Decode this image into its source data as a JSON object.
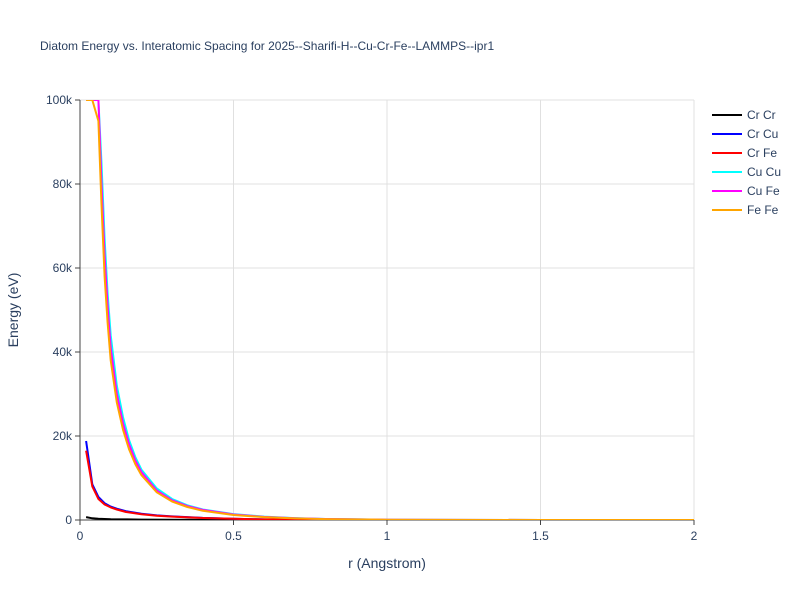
{
  "chart_data": {
    "type": "line",
    "title": "Diatom Energy vs. Interatomic Spacing for 2025--Sharifi-H--Cu-Cr-Fe--LAMMPS--ipr1",
    "xlabel": "r (Angstrom)",
    "ylabel": "Energy (eV)",
    "xlim": [
      0,
      2
    ],
    "ylim": [
      0,
      100000
    ],
    "x_ticks": [
      0,
      0.5,
      1,
      1.5,
      2
    ],
    "x_tick_labels": [
      "0",
      "0.5",
      "1",
      "1.5",
      "2"
    ],
    "y_ticks": [
      0,
      20000,
      40000,
      60000,
      80000,
      100000
    ],
    "y_tick_labels": [
      "0",
      "20k",
      "40k",
      "60k",
      "80k",
      "100k"
    ],
    "grid": true,
    "legend_position": "top-right",
    "series": [
      {
        "name": "Cr Cr",
        "color": "#000000",
        "x": [
          0.02,
          0.04,
          0.06,
          0.1,
          0.15,
          0.2,
          0.3,
          0.5,
          0.8,
          1.0,
          1.5,
          2.0
        ],
        "y": [
          700,
          400,
          300,
          200,
          150,
          100,
          60,
          20,
          5,
          0,
          0,
          0
        ]
      },
      {
        "name": "Cr Cu",
        "color": "#0000ff",
        "x": [
          0.02,
          0.04,
          0.06,
          0.08,
          0.1,
          0.12,
          0.15,
          0.2,
          0.25,
          0.3,
          0.4,
          0.5,
          0.6,
          0.7,
          0.8,
          1.0,
          1.5,
          2.0
        ],
        "y": [
          18800,
          8500,
          5500,
          4000,
          3200,
          2700,
          2100,
          1500,
          1100,
          850,
          500,
          300,
          150,
          60,
          20,
          0,
          0,
          0
        ]
      },
      {
        "name": "Cr Fe",
        "color": "#ff0000",
        "x": [
          0.02,
          0.04,
          0.06,
          0.08,
          0.1,
          0.12,
          0.15,
          0.2,
          0.25,
          0.3,
          0.4,
          0.5,
          0.6,
          0.7,
          0.8,
          1.0,
          1.5,
          2.0
        ],
        "y": [
          16500,
          8000,
          5000,
          3700,
          3000,
          2500,
          1900,
          1350,
          1000,
          800,
          480,
          280,
          140,
          55,
          20,
          0,
          0,
          0
        ]
      },
      {
        "name": "Cu Cu",
        "color": "#00ffff",
        "x": [
          0.02,
          0.05,
          0.06,
          0.07,
          0.08,
          0.09,
          0.1,
          0.12,
          0.14,
          0.16,
          0.18,
          0.2,
          0.25,
          0.3,
          0.35,
          0.4,
          0.5,
          0.6,
          0.7,
          0.8,
          1.0,
          1.5,
          2.0
        ],
        "y": [
          100000,
          100000,
          100000,
          85000,
          67000,
          54000,
          44000,
          32000,
          24500,
          19000,
          15000,
          12000,
          7500,
          5000,
          3500,
          2500,
          1400,
          800,
          450,
          250,
          80,
          0,
          0
        ]
      },
      {
        "name": "Cu Fe",
        "color": "#ff00ff",
        "x": [
          0.02,
          0.05,
          0.06,
          0.07,
          0.08,
          0.09,
          0.1,
          0.12,
          0.14,
          0.16,
          0.18,
          0.2,
          0.25,
          0.3,
          0.35,
          0.4,
          0.5,
          0.6,
          0.7,
          0.8,
          1.0,
          1.5,
          2.0
        ],
        "y": [
          100000,
          100000,
          100000,
          80000,
          63000,
          51000,
          41000,
          30000,
          23000,
          18000,
          14200,
          11400,
          7000,
          4700,
          3300,
          2400,
          1300,
          750,
          420,
          230,
          70,
          0,
          0
        ]
      },
      {
        "name": "Fe Fe",
        "color": "#ffa500",
        "x": [
          0.02,
          0.04,
          0.06,
          0.07,
          0.08,
          0.09,
          0.1,
          0.12,
          0.14,
          0.16,
          0.18,
          0.2,
          0.25,
          0.3,
          0.35,
          0.4,
          0.5,
          0.6,
          0.7,
          0.8,
          1.0,
          1.5,
          2.0
        ],
        "y": [
          100000,
          100000,
          95000,
          75000,
          58000,
          47000,
          38000,
          28000,
          21500,
          16800,
          13300,
          10700,
          6600,
          4400,
          3100,
          2200,
          1200,
          700,
          380,
          210,
          60,
          0,
          0
        ]
      }
    ]
  }
}
